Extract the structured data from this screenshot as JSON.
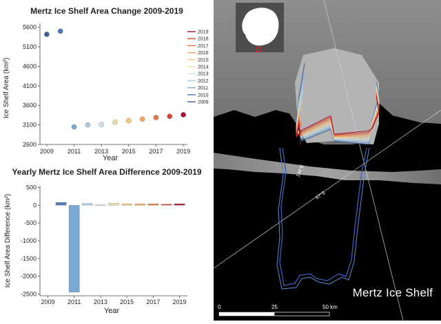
{
  "charts": {
    "chart_data": [
      {
        "type": "scatter",
        "title": "Mertz Ice Shelf Area Change 2009-2019",
        "xlabel": "Year",
        "ylabel": "Ice Shelf Area (km²)",
        "xlim": [
          2008.5,
          2019.3
        ],
        "ylim": [
          2600,
          5700
        ],
        "xticks": [
          2009,
          2011,
          2013,
          2015,
          2017,
          2019
        ],
        "yticks": [
          2600,
          3100,
          3600,
          4100,
          4600,
          5100,
          5600
        ],
        "x": [
          2009,
          2010,
          2011,
          2012,
          2013,
          2014,
          2015,
          2016,
          2017,
          2018,
          2019
        ],
        "values": [
          5420,
          5500,
          3050,
          3100,
          3110,
          3170,
          3210,
          3250,
          3290,
          3320,
          3360
        ],
        "colors": [
          "#3e60a0",
          "#4f79b5",
          "#79a9d1",
          "#a9cde2",
          "#cfe3ea",
          "#ecdcb0",
          "#f6c67f",
          "#f3a65d",
          "#e87742",
          "#d4452e",
          "#a50f2a"
        ],
        "legend": [
          "2019",
          "2018",
          "2017",
          "2016",
          "2015",
          "2014",
          "2013",
          "2012",
          "2011",
          "2010",
          "2009"
        ],
        "legend_colors": [
          "#a50f2a",
          "#d4452e",
          "#e87742",
          "#f3a65d",
          "#f6c67f",
          "#ecdcb0",
          "#cfe3ea",
          "#a9cde2",
          "#79a9d1",
          "#4f79b5",
          "#3e60a0"
        ],
        "legend_position": "top-right",
        "grid": false
      },
      {
        "type": "bar",
        "title": "Yearly Mertz Ice Shelf Area Difference 2009-2019",
        "xlabel": "Year",
        "ylabel": "Ice Shelf Area Difference (km²)",
        "xlim": [
          2008.4,
          2019.6
        ],
        "ylim": [
          -2550,
          550
        ],
        "xticks": [
          2009,
          2011,
          2013,
          2015,
          2017,
          2019
        ],
        "yticks": [
          500,
          0,
          -500,
          -1000,
          -1500,
          -2000,
          -2500
        ],
        "x": [
          2010,
          2011,
          2012,
          2013,
          2014,
          2015,
          2016,
          2017,
          2018,
          2019
        ],
        "values": [
          80,
          -2450,
          50,
          10,
          60,
          40,
          40,
          40,
          30,
          40
        ],
        "colors": [
          "#4f79b5",
          "#79a9d1",
          "#a9cde2",
          "#cfe3ea",
          "#ecdcb0",
          "#f6c67f",
          "#f3a65d",
          "#e87742",
          "#d4452e",
          "#a50f2a"
        ],
        "grid": false
      }
    ]
  },
  "map": {
    "title": "Mertz Ice Shelf",
    "scale_labels": [
      "0",
      "25",
      "50 km"
    ],
    "graticule_labels": [
      "146°E",
      "67°S"
    ]
  }
}
